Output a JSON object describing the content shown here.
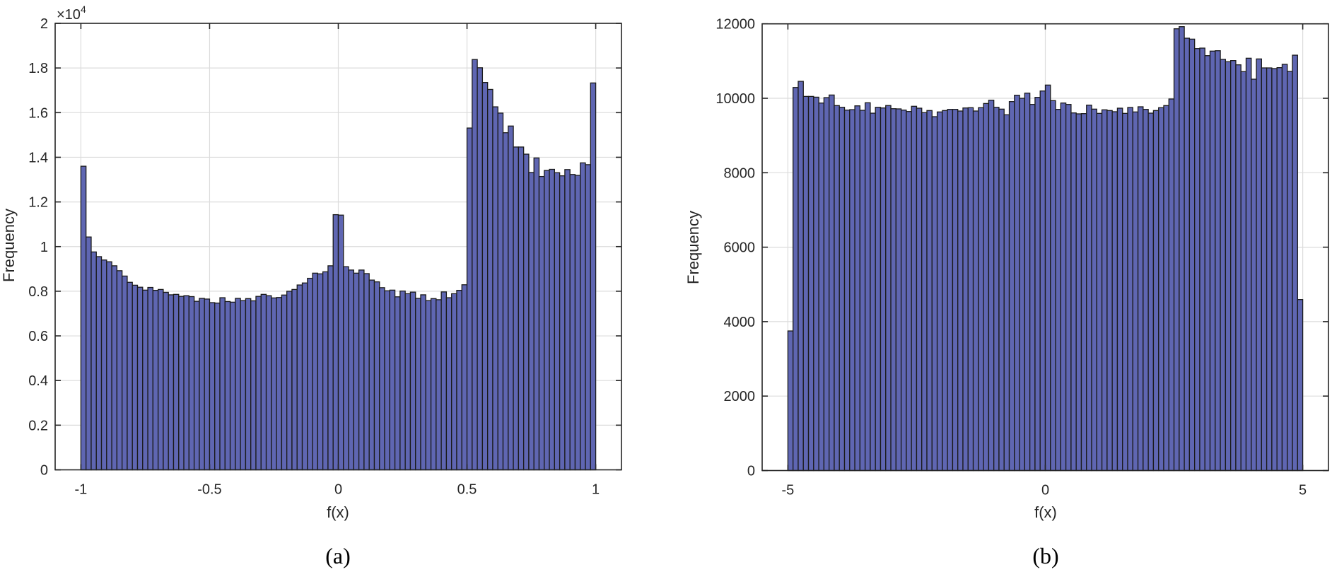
{
  "chart_data": [
    {
      "id": "a",
      "type": "bar",
      "title": "",
      "caption": "(a)",
      "xlabel": "f(x)",
      "ylabel": "Frequency",
      "y_exponent_label": "×10",
      "y_exponent_power": "4",
      "xlim": [
        -1.1,
        1.1
      ],
      "ylim": [
        0,
        2
      ],
      "y_scale_note": "values in units of 10^4",
      "xticks": [
        -1,
        -0.5,
        0,
        0.5,
        1
      ],
      "xtick_labels": [
        "-1",
        "-0.5",
        "0",
        "0.5",
        "1"
      ],
      "yticks": [
        0,
        0.2,
        0.4,
        0.6,
        0.8,
        1,
        1.2,
        1.4,
        1.6,
        1.8,
        2
      ],
      "ytick_labels": [
        "0",
        "0.2",
        "0.4",
        "0.6",
        "0.8",
        "1",
        "1.2",
        "1.4",
        "1.6",
        "1.8",
        "2"
      ],
      "grid": true,
      "bin_start": -1,
      "bin_width": 0.02,
      "bar_color": "#5f66b2",
      "edge_color": "#1a1a1a",
      "values": [
        1.36,
        1.043,
        0.976,
        0.955,
        0.94,
        0.932,
        0.914,
        0.892,
        0.868,
        0.84,
        0.827,
        0.818,
        0.805,
        0.817,
        0.804,
        0.808,
        0.795,
        0.784,
        0.786,
        0.777,
        0.78,
        0.776,
        0.755,
        0.768,
        0.765,
        0.749,
        0.747,
        0.771,
        0.754,
        0.751,
        0.768,
        0.758,
        0.767,
        0.757,
        0.777,
        0.786,
        0.78,
        0.77,
        0.772,
        0.783,
        0.8,
        0.808,
        0.828,
        0.837,
        0.858,
        0.881,
        0.878,
        0.887,
        0.914,
        1.143,
        1.141,
        0.91,
        0.895,
        0.881,
        0.895,
        0.879,
        0.85,
        0.842,
        0.816,
        0.802,
        0.805,
        0.775,
        0.801,
        0.789,
        0.796,
        0.768,
        0.784,
        0.758,
        0.767,
        0.762,
        0.797,
        0.771,
        0.789,
        0.804,
        0.829,
        1.531,
        1.838,
        1.801,
        1.735,
        1.704,
        1.626,
        1.598,
        1.51,
        1.54,
        1.446,
        1.446,
        1.414,
        1.332,
        1.397,
        1.314,
        1.341,
        1.346,
        1.331,
        1.317,
        1.345,
        1.323,
        1.319,
        1.375,
        1.367,
        1.733
      ]
    },
    {
      "id": "b",
      "type": "bar",
      "title": "",
      "caption": "(b)",
      "xlabel": "f(x)",
      "ylabel": "Frequency",
      "xlim": [
        -5.5,
        5.5
      ],
      "ylim": [
        0,
        12000
      ],
      "xticks": [
        -5,
        0,
        5
      ],
      "xtick_labels": [
        "-5",
        "0",
        "5"
      ],
      "yticks": [
        0,
        2000,
        4000,
        6000,
        8000,
        10000,
        12000
      ],
      "ytick_labels": [
        "0",
        "2000",
        "4000",
        "6000",
        "8000",
        "10000",
        "12000"
      ],
      "grid": true,
      "bin_start": -5,
      "bin_width": 0.1,
      "bar_color": "#5f66b2",
      "edge_color": "#1a1a1a",
      "values": [
        3750,
        10290,
        10455,
        10050,
        10050,
        10030,
        9872,
        10018,
        10088,
        9804,
        9758,
        9682,
        9695,
        9797,
        9677,
        9880,
        9600,
        9758,
        9740,
        9805,
        9720,
        9715,
        9683,
        9645,
        9785,
        9734,
        9614,
        9671,
        9506,
        9633,
        9671,
        9702,
        9702,
        9658,
        9740,
        9747,
        9658,
        9747,
        9860,
        9949,
        9758,
        9709,
        9557,
        9911,
        10082,
        10000,
        10139,
        9835,
        10025,
        10196,
        10355,
        9937,
        9702,
        9873,
        9835,
        9607,
        9582,
        9588,
        9816,
        9709,
        9595,
        9690,
        9671,
        9639,
        9734,
        9595,
        9753,
        9633,
        9772,
        9702,
        9601,
        9671,
        9747,
        9804,
        9981,
        11867,
        11924,
        11614,
        11589,
        11335,
        11348,
        11145,
        11267,
        11278,
        11045,
        10982,
        11013,
        10899,
        10716,
        11076,
        10513,
        11057,
        10816,
        10816,
        10798,
        10823,
        10912,
        10722,
        11158,
        4593
      ]
    }
  ]
}
